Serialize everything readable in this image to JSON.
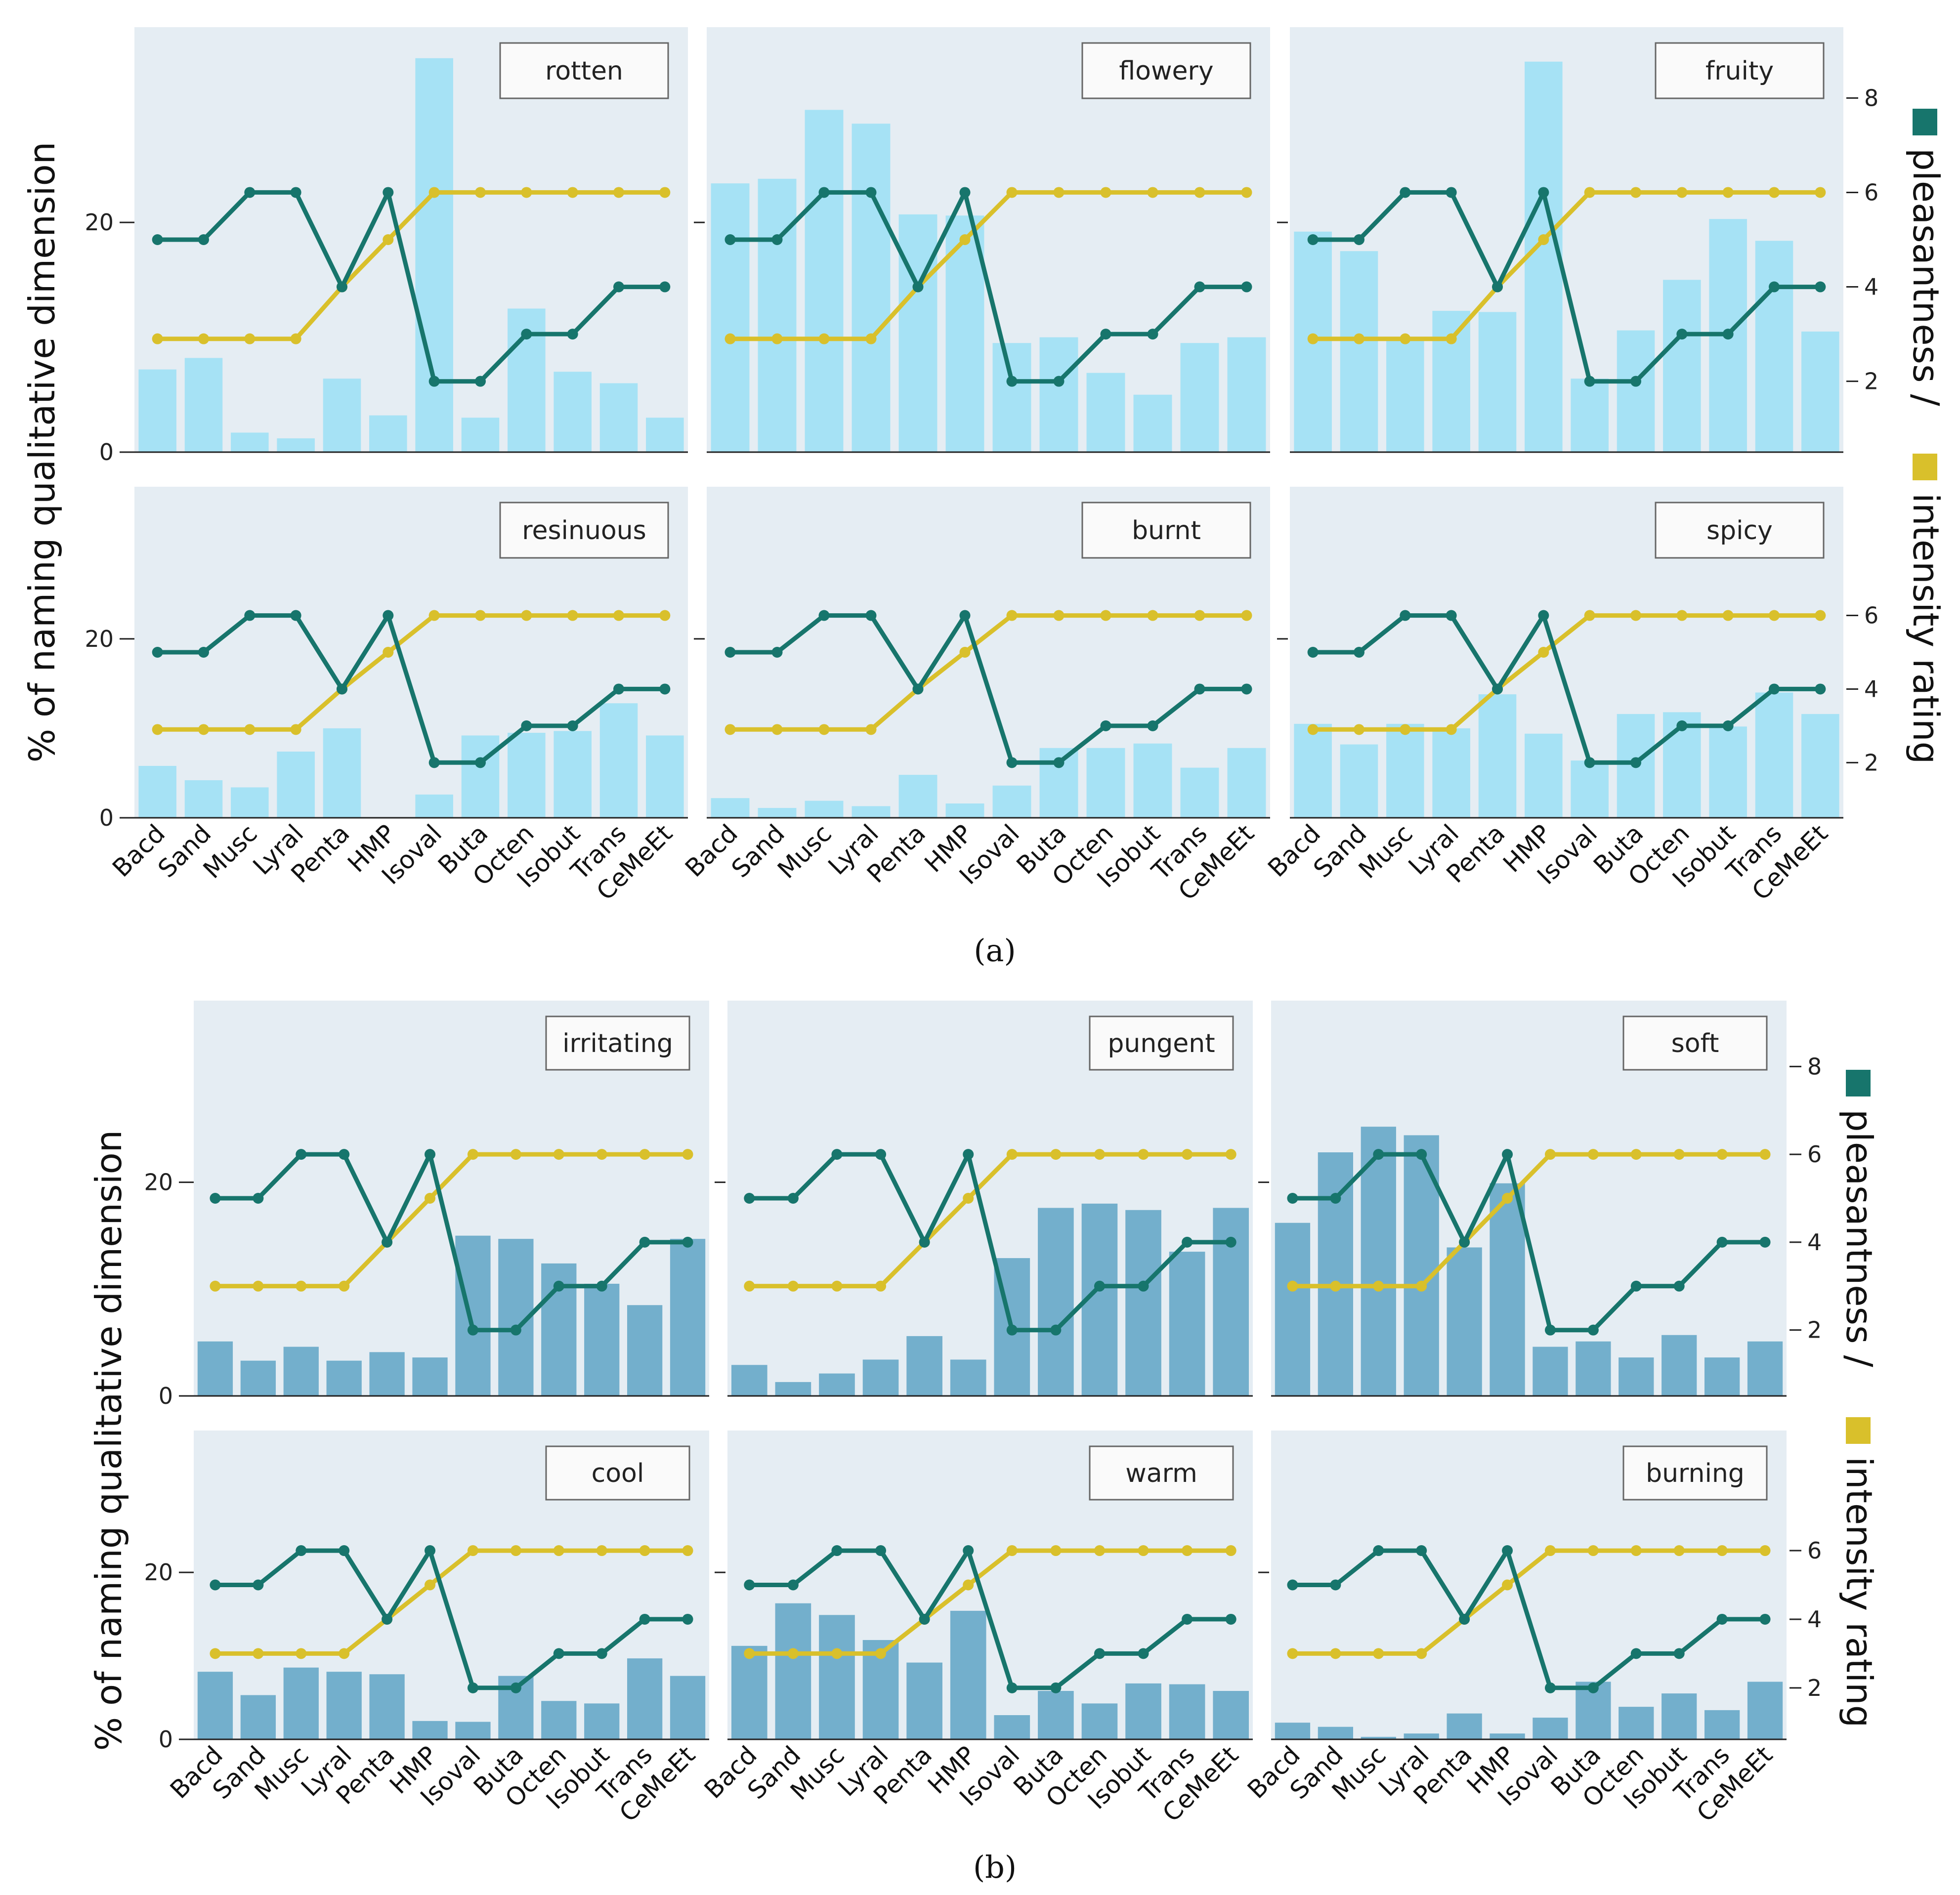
{
  "figure": {
    "y_axis_label": "% of naming qualitative dimension",
    "right_axis_label_part1": "pleasantness /",
    "right_axis_label_part2": "intensity rating",
    "colors": {
      "panel_background": "#e5edf3",
      "bar_a": "#a6e2f5",
      "bar_b": "#73afcc",
      "pleasantness_line": "#17756c",
      "intensity_line": "#d9c02b"
    }
  },
  "chart_data": [
    {
      "group": "a",
      "group_label": "(a)",
      "type": "bar+line",
      "categories": [
        "Bacd",
        "Sand",
        "Musc",
        "Lyral",
        "Penta",
        "HMP",
        "Isoval",
        "Buta",
        "Octen",
        "Isobut",
        "Trans",
        "CeMeEt"
      ],
      "left_axis": {
        "label": "% of naming qualitative dimension",
        "ticks": [
          0,
          20
        ],
        "ylim": [
          0,
          37
        ]
      },
      "right_axis": {
        "label": "pleasantness / intensity rating",
        "ticks": [
          2,
          4,
          6,
          8
        ],
        "ylim": [
          0.5,
          9.5
        ]
      },
      "lines": {
        "pleasantness": [
          5,
          5,
          6,
          6,
          4,
          6,
          2,
          2,
          3,
          3,
          4,
          4
        ],
        "intensity": [
          2.9,
          2.9,
          2.9,
          2.9,
          4,
          5,
          6,
          6,
          6,
          6,
          6,
          6
        ]
      },
      "panels": [
        {
          "name": "rotten",
          "values": [
            7.2,
            8.2,
            1.7,
            1.2,
            6.4,
            3.2,
            34.3,
            3.0,
            12.5,
            7.0,
            6.0,
            3.0
          ]
        },
        {
          "name": "flowery",
          "values": [
            23.4,
            23.8,
            29.8,
            28.6,
            20.7,
            20.6,
            9.5,
            10.0,
            6.9,
            5.0,
            9.5,
            10.0
          ]
        },
        {
          "name": "fruity",
          "values": [
            19.2,
            17.5,
            9.8,
            12.3,
            12.2,
            34.0,
            6.4,
            10.6,
            15.0,
            20.3,
            18.4,
            10.5
          ]
        },
        {
          "name": "resinuous",
          "values": [
            5.8,
            4.2,
            3.4,
            7.4,
            10.0,
            0.0,
            2.6,
            9.2,
            9.5,
            9.7,
            12.8,
            9.2
          ]
        },
        {
          "name": "burnt",
          "values": [
            2.2,
            1.1,
            1.9,
            1.3,
            4.8,
            1.6,
            3.6,
            7.8,
            7.8,
            8.3,
            5.6,
            7.8
          ]
        },
        {
          "name": "spicy",
          "values": [
            10.5,
            8.2,
            10.5,
            10.0,
            13.8,
            9.4,
            6.4,
            11.6,
            11.8,
            10.2,
            14.0,
            11.6
          ]
        }
      ]
    },
    {
      "group": "b",
      "group_label": "(b)",
      "type": "bar+line",
      "categories": [
        "Bacd",
        "Sand",
        "Musc",
        "Lyral",
        "Penta",
        "HMP",
        "Isoval",
        "Buta",
        "Octen",
        "Isobut",
        "Trans",
        "CeMeEt"
      ],
      "left_axis": {
        "label": "% of naming qualitative dimension",
        "ticks": [
          0,
          20
        ],
        "ylim": [
          0,
          37
        ]
      },
      "right_axis": {
        "label": "pleasantness / intensity rating",
        "ticks": [
          2,
          4,
          6,
          8
        ],
        "ylim": [
          0.5,
          9.5
        ]
      },
      "lines": {
        "pleasantness": [
          5,
          5,
          6,
          6,
          4,
          6,
          2,
          2,
          3,
          3,
          4,
          4
        ],
        "intensity": [
          3,
          3,
          3,
          3,
          4,
          5,
          6,
          6,
          6,
          6,
          6,
          6
        ]
      },
      "panels": [
        {
          "name": "irritating",
          "values": [
            5.1,
            3.3,
            4.6,
            3.3,
            4.1,
            3.6,
            15.0,
            14.7,
            12.4,
            10.5,
            8.5,
            14.7
          ]
        },
        {
          "name": "pungent",
          "values": [
            2.9,
            1.3,
            2.1,
            3.4,
            5.6,
            3.4,
            12.9,
            17.6,
            18.0,
            17.4,
            13.5,
            17.6
          ]
        },
        {
          "name": "soft",
          "values": [
            16.2,
            22.8,
            25.2,
            24.4,
            13.9,
            19.9,
            4.6,
            5.1,
            3.6,
            5.7,
            3.6,
            5.1
          ]
        },
        {
          "name": "cool",
          "values": [
            8.1,
            5.3,
            8.6,
            8.1,
            7.8,
            2.2,
            2.1,
            7.6,
            4.6,
            4.3,
            9.7,
            7.6
          ]
        },
        {
          "name": "warm",
          "values": [
            11.2,
            16.3,
            14.9,
            11.9,
            9.2,
            15.4,
            2.9,
            5.8,
            4.3,
            6.7,
            6.6,
            5.8
          ]
        },
        {
          "name": "burning",
          "values": [
            2.0,
            1.5,
            0.3,
            0.7,
            3.1,
            0.7,
            2.6,
            6.9,
            3.9,
            5.5,
            3.5,
            6.9
          ]
        }
      ]
    }
  ]
}
